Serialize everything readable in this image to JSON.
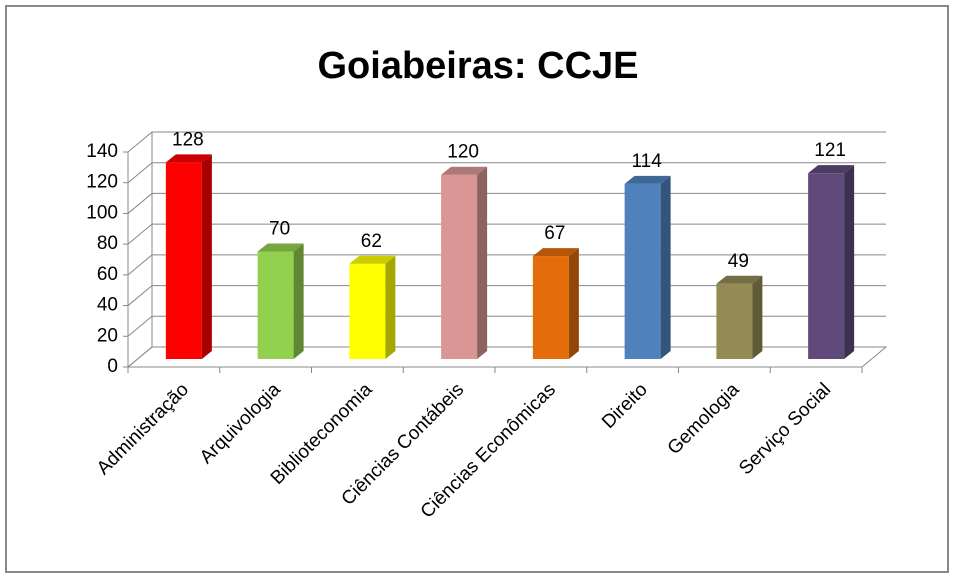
{
  "chart_data": {
    "type": "bar",
    "title": "Goiabeiras: CCJE",
    "categories": [
      "Administração",
      "Arquivologia",
      "Biblioteconomia",
      "Ciências Contábeis",
      "Ciências Econômicas",
      "Direito",
      "Gemologia",
      "Serviço Social"
    ],
    "values": [
      128,
      70,
      62,
      120,
      67,
      114,
      49,
      121
    ],
    "colors": [
      "#ff0000",
      "#92d050",
      "#ffff00",
      "#da9694",
      "#e46c0a",
      "#4f81bd",
      "#948a54",
      "#604a7b"
    ],
    "ylim": [
      0,
      140
    ],
    "yticks": [
      0,
      20,
      40,
      60,
      80,
      100,
      120,
      140
    ],
    "grid": true
  }
}
